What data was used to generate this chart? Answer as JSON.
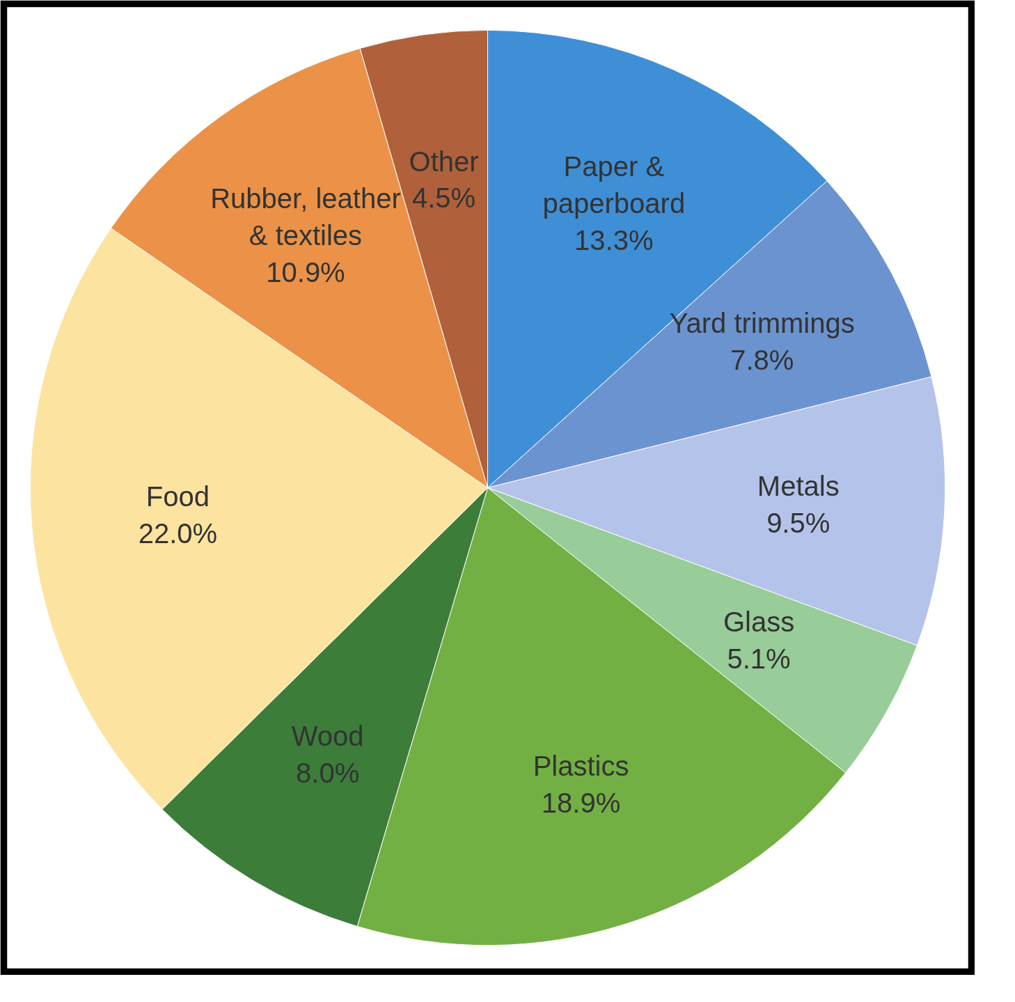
{
  "chart_data": {
    "type": "pie",
    "categories": [
      "Paper & paperboard",
      "Yard trimmings",
      "Metals",
      "Glass",
      "Plastics",
      "Wood",
      "Food",
      "Rubber, leather & textiles",
      "Other"
    ],
    "values": [
      13.3,
      7.8,
      9.5,
      5.1,
      18.9,
      8.0,
      22.0,
      10.9,
      4.5
    ],
    "colors": [
      "#3f8fd6",
      "#6b93d0",
      "#b4c3ea",
      "#98cc98",
      "#72b043",
      "#3c7d3a",
      "#fde3a0",
      "#eb9248",
      "#b0603a"
    ],
    "value_labels": [
      "13.3%",
      "7.8%",
      "9.5%",
      "5.1%",
      "18.9%",
      "8.0%",
      "22.0%",
      "10.9%",
      "4.5%"
    ]
  }
}
